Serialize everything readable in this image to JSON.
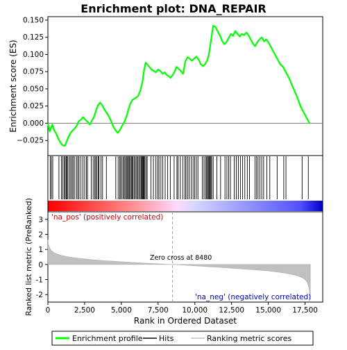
{
  "chart_data": {
    "type": "line",
    "title": "Enrichment plot: DNA_REPAIR",
    "top_panel": {
      "ylabel": "Enrichment score (ES)",
      "ylim": [
        -0.047,
        0.155
      ],
      "yticks": [
        -0.025,
        0.0,
        0.025,
        0.05,
        0.075,
        0.1,
        0.125,
        0.15
      ],
      "ytick_labels": [
        "−0.025",
        "0.000",
        "0.025",
        "0.050",
        "0.075",
        "0.100",
        "0.125",
        "0.150"
      ],
      "series": [
        {
          "name": "Enrichment profile",
          "color": "#00ff00",
          "x": [
            0,
            120,
            300,
            420,
            560,
            700,
            850,
            1000,
            1150,
            1250,
            1400,
            1550,
            1700,
            1800,
            1950,
            2100,
            2250,
            2400,
            2550,
            2700,
            2850,
            3000,
            3150,
            3300,
            3400,
            3550,
            3700,
            3850,
            4000,
            4150,
            4300,
            4450,
            4600,
            4750,
            4900,
            5050,
            5200,
            5350,
            5450,
            5600,
            5750,
            5900,
            6050,
            6150,
            6300,
            6450,
            6550,
            6650,
            6750,
            6900,
            7050,
            7200,
            7350,
            7500,
            7650,
            7800,
            7950,
            8100,
            8250,
            8350,
            8480,
            8600,
            8750,
            8900,
            9050,
            9200,
            9350,
            9500,
            9650,
            9800,
            9950,
            10100,
            10250,
            10400,
            10550,
            10700,
            10850,
            10950,
            11050,
            11150,
            11250,
            11400,
            11550,
            11700,
            11850,
            12000,
            12150,
            12300,
            12450,
            12600,
            12750,
            12900,
            13050,
            13200,
            13350,
            13500,
            13650,
            13800,
            13950,
            14100,
            14250,
            14400,
            14550,
            14700,
            14850,
            15000,
            15200,
            15400,
            15600,
            15800,
            16000,
            16200,
            16400,
            16600,
            16800,
            17000,
            17200,
            17400,
            17600,
            17800
          ],
          "y": [
            0.0,
            -0.012,
            -0.002,
            -0.01,
            -0.015,
            -0.022,
            -0.028,
            -0.032,
            -0.033,
            -0.028,
            -0.02,
            -0.014,
            -0.01,
            -0.008,
            -0.004,
            0.003,
            0.005,
            0.009,
            0.005,
            0.002,
            -0.002,
            0.004,
            0.01,
            0.02,
            0.026,
            0.03,
            0.026,
            0.02,
            0.015,
            0.01,
            0.003,
            -0.005,
            -0.01,
            -0.014,
            -0.01,
            -0.004,
            0.002,
            0.01,
            0.018,
            0.028,
            0.034,
            0.036,
            0.038,
            0.04,
            0.048,
            0.062,
            0.078,
            0.088,
            0.086,
            0.082,
            0.078,
            0.076,
            0.074,
            0.078,
            0.076,
            0.072,
            0.074,
            0.07,
            0.068,
            0.066,
            0.07,
            0.074,
            0.082,
            0.079,
            0.076,
            0.072,
            0.09,
            0.096,
            0.094,
            0.091,
            0.094,
            0.097,
            0.093,
            0.086,
            0.083,
            0.086,
            0.092,
            0.1,
            0.113,
            0.128,
            0.142,
            0.14,
            0.134,
            0.128,
            0.12,
            0.115,
            0.118,
            0.124,
            0.13,
            0.127,
            0.134,
            0.13,
            0.126,
            0.13,
            0.128,
            0.132,
            0.128,
            0.122,
            0.116,
            0.112,
            0.118,
            0.122,
            0.125,
            0.119,
            0.122,
            0.118,
            0.11,
            0.102,
            0.094,
            0.086,
            0.082,
            0.074,
            0.066,
            0.056,
            0.046,
            0.036,
            0.024,
            0.016,
            0.008,
            0.0
          ]
        }
      ]
    },
    "hits_panel": {
      "hit_ranks": [
        160,
        240,
        330,
        750,
        920,
        1020,
        1110,
        1180,
        1250,
        1310,
        1370,
        1480,
        1560,
        1650,
        1720,
        1830,
        1950,
        2040,
        2120,
        2250,
        2380,
        2500,
        2620,
        2700,
        2950,
        3080,
        3180,
        3250,
        3330,
        3420,
        3480,
        3610,
        3720,
        3980,
        4620,
        4780,
        4880,
        4950,
        5040,
        5130,
        5200,
        5280,
        5350,
        5420,
        5480,
        5540,
        5610,
        5680,
        5740,
        5800,
        5880,
        5960,
        6040,
        6110,
        6190,
        6270,
        6340,
        6390,
        6440,
        6490,
        6540,
        6600,
        6680,
        6760,
        7010,
        7180,
        7350,
        7470,
        7560,
        7690,
        7820,
        7980,
        8150,
        8330,
        8590,
        8780,
        8860,
        9010,
        9190,
        9330,
        9400,
        9520,
        9620,
        9760,
        9880,
        9990,
        10100,
        10210,
        10510,
        10620,
        10720,
        10800,
        10860,
        10920,
        10980,
        11040,
        11090,
        11150,
        11250,
        11500,
        11750,
        12050,
        12180,
        12300,
        12420,
        12680,
        12820,
        12960,
        13100,
        13250,
        13400,
        13570,
        13720,
        14090,
        14200,
        14300,
        14420,
        14550,
        14680,
        14900,
        15100,
        15600,
        16050,
        16200,
        17300,
        17720
      ]
    },
    "gradient_labels": {
      "positive": "'na_pos' (positively correlated)",
      "negative": "'na_neg' (negatively correlated)"
    },
    "bottom_panel": {
      "ylabel": "Ranked list metric (PreRanked)",
      "xlabel": "Rank in Ordered Dataset",
      "ylim": [
        -2.5,
        3.5
      ],
      "yticks": [
        -2,
        -1,
        0,
        1,
        2,
        3
      ],
      "xlim": [
        0,
        18700
      ],
      "xticks": [
        0,
        2500,
        5000,
        7500,
        10000,
        12500,
        15000,
        17500
      ],
      "xtick_labels": [
        "0",
        "2,500",
        "5,000",
        "7,500",
        "10,000",
        "12,500",
        "15,000",
        "17,500"
      ],
      "zero_cross_label": "Zero cross at 8480",
      "zero_cross": 8480,
      "metric_x": [
        0,
        30,
        80,
        150,
        250,
        400,
        600,
        900,
        1300,
        2000,
        3000,
        4000,
        5000,
        6000,
        7000,
        8000,
        8480,
        9000,
        10000,
        11000,
        12000,
        13000,
        14000,
        15000,
        16000,
        16500,
        17000,
        17300,
        17500,
        17650,
        17750,
        17820,
        17860
      ],
      "metric_y": [
        1.65,
        1.4,
        1.2,
        1.05,
        0.92,
        0.8,
        0.7,
        0.6,
        0.52,
        0.42,
        0.32,
        0.24,
        0.18,
        0.12,
        0.07,
        0.02,
        0.0,
        -0.03,
        -0.09,
        -0.15,
        -0.21,
        -0.28,
        -0.35,
        -0.43,
        -0.55,
        -0.64,
        -0.76,
        -0.88,
        -1.0,
        -1.2,
        -1.45,
        -1.9,
        -2.35
      ]
    },
    "legend": {
      "items": [
        "Enrichment profile",
        "Hits",
        "Ranking metric scores"
      ],
      "colors": [
        "#00ff00",
        "#000000",
        "#c0c0c0"
      ]
    }
  }
}
